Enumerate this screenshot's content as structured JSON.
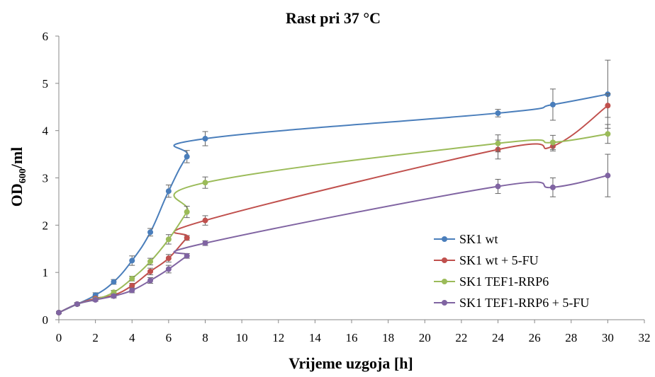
{
  "chart_data": {
    "type": "line",
    "title": "Rast pri 37 °C",
    "xlabel": "Vrijeme uzgoja [h]",
    "ylabel_main": "OD",
    "ylabel_sub": "600",
    "ylabel_tail": "/ml",
    "xlim": [
      0,
      32
    ],
    "ylim": [
      0,
      6
    ],
    "xticks": [
      0,
      2,
      4,
      6,
      8,
      10,
      12,
      14,
      16,
      18,
      20,
      22,
      24,
      26,
      28,
      30,
      32
    ],
    "yticks": [
      0,
      1,
      2,
      3,
      4,
      5,
      6
    ],
    "grid": false,
    "legend_position": "bottom-right",
    "series": [
      {
        "name": "SK1 wt",
        "color": "#4a7ebb",
        "x": [
          0,
          1,
          2,
          3,
          4,
          5,
          6,
          7,
          8,
          24,
          27,
          30
        ],
        "y": [
          0.15,
          0.33,
          0.52,
          0.8,
          1.25,
          1.85,
          2.72,
          3.45,
          3.83,
          4.37,
          4.55,
          4.77
        ],
        "err": [
          0.02,
          0.03,
          0.05,
          0.05,
          0.1,
          0.08,
          0.13,
          0.13,
          0.15,
          0.08,
          0.33,
          0.72
        ]
      },
      {
        "name": "SK1 wt + 5-FU",
        "color": "#c0504d",
        "x": [
          0,
          1,
          2,
          3,
          4,
          5,
          6,
          7,
          8,
          24,
          27,
          30
        ],
        "y": [
          0.15,
          0.33,
          0.45,
          0.52,
          0.72,
          1.02,
          1.3,
          1.73,
          2.1,
          3.6,
          3.67,
          4.53
        ],
        "err": [
          0.02,
          0.03,
          0.03,
          0.04,
          0.05,
          0.07,
          0.08,
          0.05,
          0.1,
          0.2,
          0.1,
          0.25
        ]
      },
      {
        "name": "SK1 TEF1-RRP6",
        "color": "#9bbb59",
        "x": [
          0,
          1,
          2,
          3,
          4,
          5,
          6,
          7,
          8,
          24,
          27,
          30
        ],
        "y": [
          0.15,
          0.33,
          0.43,
          0.58,
          0.87,
          1.23,
          1.7,
          2.28,
          2.9,
          3.73,
          3.75,
          3.93
        ],
        "err": [
          0.02,
          0.03,
          0.03,
          0.04,
          0.05,
          0.07,
          0.1,
          0.12,
          0.12,
          0.18,
          0.15,
          0.2
        ]
      },
      {
        "name": "SK1 TEF1-RRP6 + 5-FU",
        "color": "#8064a2",
        "x": [
          0,
          1,
          2,
          3,
          4,
          5,
          6,
          7,
          8,
          24,
          27,
          30
        ],
        "y": [
          0.15,
          0.33,
          0.42,
          0.5,
          0.62,
          0.83,
          1.07,
          1.35,
          1.62,
          2.82,
          2.8,
          3.05
        ],
        "err": [
          0.02,
          0.03,
          0.03,
          0.04,
          0.05,
          0.06,
          0.08,
          0.05,
          0.05,
          0.15,
          0.2,
          0.45
        ]
      }
    ]
  }
}
